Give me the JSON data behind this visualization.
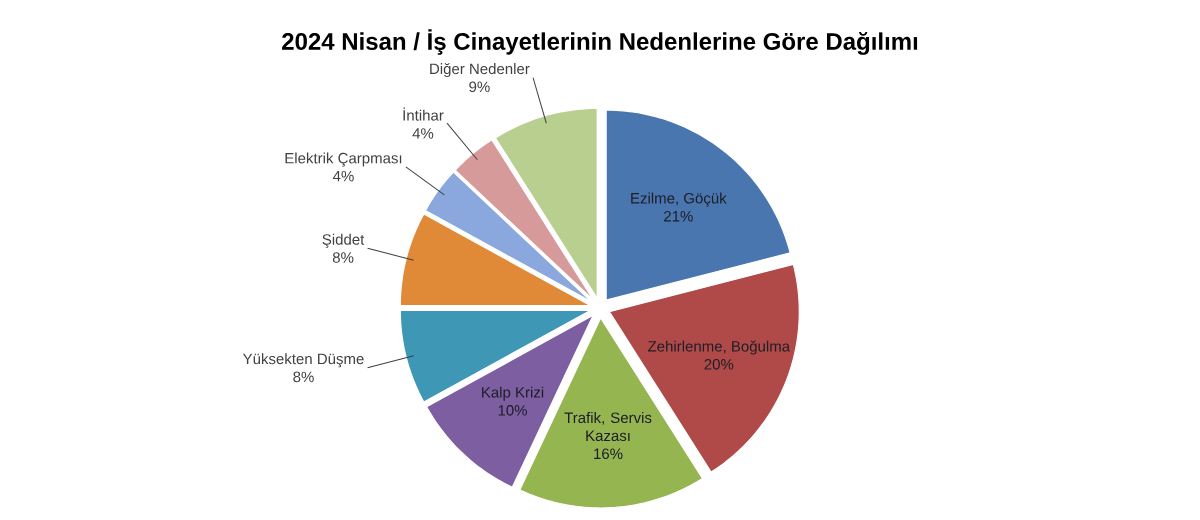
{
  "chart_data": {
    "type": "pie",
    "title": "2024 Nisan / İş Cinayetlerinin Nedenlerine Göre Dağılımı",
    "categories": [
      "Ezilme, Göçük",
      "Zehirlenme, Boğulma",
      "Trafik, Servis Kazası",
      "Kalp Krizi",
      "Yüksekten Düşme",
      "Şiddet",
      "Elektrik Çarpması",
      "İntihar",
      "Diğer Nedenler"
    ],
    "values": [
      21,
      20,
      16,
      10,
      8,
      8,
      4,
      4,
      9
    ],
    "value_labels": [
      "21%",
      "20%",
      "16%",
      "10%",
      "8%",
      "8%",
      "4%",
      "4%",
      "9%"
    ],
    "colors": [
      "#4a76b0",
      "#b04a48",
      "#94b550",
      "#7d5ea0",
      "#3d97b5",
      "#e08a38",
      "#8aa8dd",
      "#d69a9a",
      "#b8cf90"
    ]
  }
}
